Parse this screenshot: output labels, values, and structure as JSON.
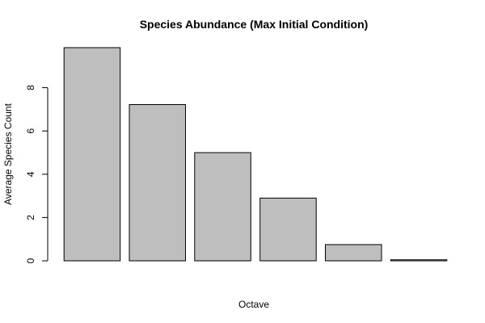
{
  "chart_data": {
    "type": "bar",
    "title": "Species Abundance (Max Initial Condition)",
    "xlabel": "Octave",
    "ylabel": "Average Species Count",
    "categories": [
      "",
      "",
      "",
      "",
      "",
      ""
    ],
    "values": [
      9.85,
      7.22,
      5.0,
      2.9,
      0.75,
      0.05
    ],
    "ylim": [
      0,
      9.85
    ],
    "yticks": [
      0,
      2,
      4,
      6,
      8
    ],
    "bar_color": "#bebebe",
    "edge_color": "#000000",
    "grid": false,
    "legend": "none"
  }
}
